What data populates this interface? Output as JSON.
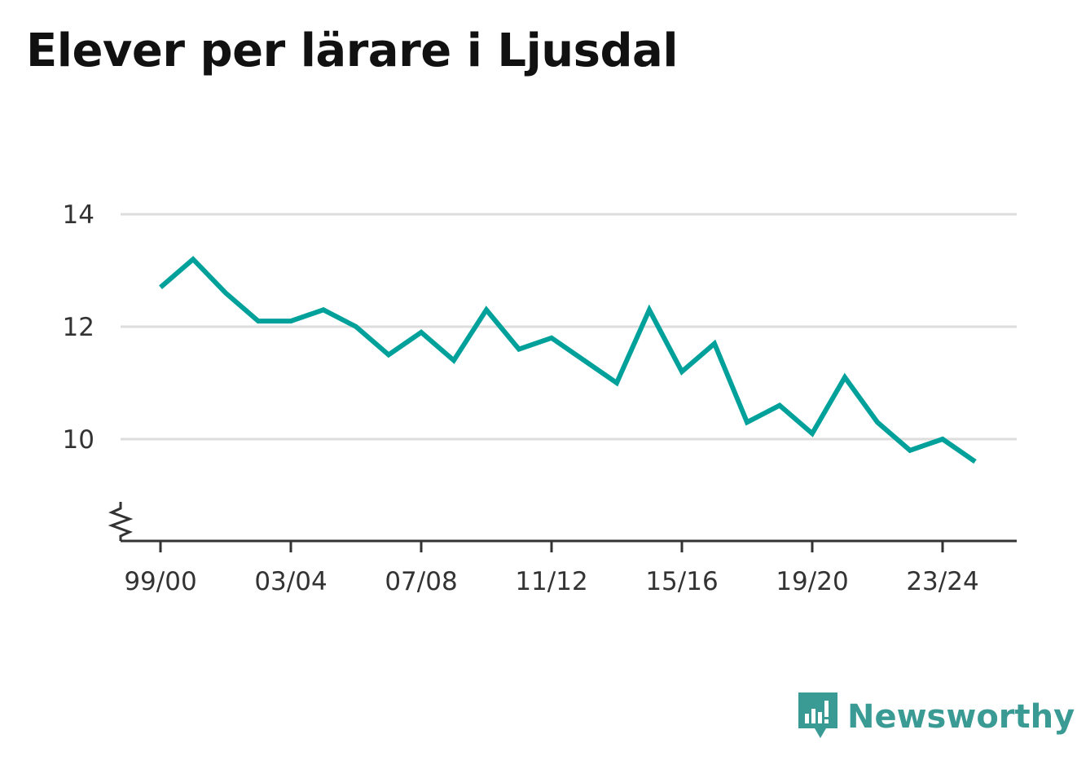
{
  "chart_data": {
    "type": "line",
    "title": "Elever per lärare i Ljusdal",
    "x": [
      "99/00",
      "00/01",
      "01/02",
      "02/03",
      "03/04",
      "04/05",
      "05/06",
      "06/07",
      "07/08",
      "08/09",
      "09/10",
      "10/11",
      "11/12",
      "12/13",
      "13/14",
      "14/15",
      "15/16",
      "16/17",
      "17/18",
      "18/19",
      "19/20",
      "20/21",
      "21/22",
      "22/23",
      "23/24",
      "24/25"
    ],
    "xticks": [
      "99/00",
      "03/04",
      "07/08",
      "11/12",
      "15/16",
      "19/20",
      "23/24"
    ],
    "yticks": [
      "10",
      "12",
      "14"
    ],
    "ylim": [
      8.2,
      14
    ],
    "series": [
      {
        "values": [
          12.7,
          13.2,
          12.6,
          12.1,
          12.1,
          12.3,
          12.0,
          11.5,
          11.9,
          11.4,
          12.3,
          11.6,
          11.8,
          11.4,
          11.0,
          12.3,
          11.2,
          11.7,
          10.3,
          10.6,
          10.1,
          11.1,
          10.3,
          9.8,
          10.0,
          9.6
        ],
        "color": "#00a19a"
      }
    ],
    "grid": true,
    "axis_break": true
  },
  "brand": {
    "name": "Newsworthy",
    "icon": "newsworthy-logo-icon",
    "color": "#3a9a94"
  }
}
